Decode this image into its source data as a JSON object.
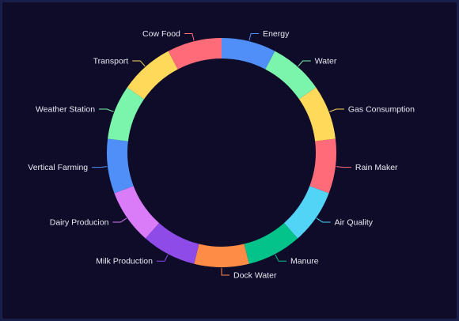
{
  "chart_data": {
    "type": "pie",
    "variant": "donut",
    "title": "",
    "legend": "none",
    "slices": [
      {
        "label": "Energy",
        "value": 1,
        "color": "#4f8ff7"
      },
      {
        "label": "Water",
        "value": 1,
        "color": "#7cf5ac"
      },
      {
        "label": "Gas Consumption",
        "value": 1,
        "color": "#ffd95a"
      },
      {
        "label": "Rain Maker",
        "value": 1,
        "color": "#ff6b78"
      },
      {
        "label": "Air Quality",
        "value": 1,
        "color": "#52d4f7"
      },
      {
        "label": "Manure",
        "value": 1,
        "color": "#03c28a"
      },
      {
        "label": "Dock Water",
        "value": 1,
        "color": "#ff8c46"
      },
      {
        "label": "Milk Production",
        "value": 1,
        "color": "#8e4be8"
      },
      {
        "label": "Dairy Producion",
        "value": 1,
        "color": "#da7cf7"
      },
      {
        "label": "Vertical Farming",
        "value": 1,
        "color": "#4f8ff7"
      },
      {
        "label": "Weather Station",
        "value": 1,
        "color": "#7cf5ac"
      },
      {
        "label": "Transport",
        "value": 1,
        "color": "#ffd95a"
      },
      {
        "label": "Cow Food",
        "value": 1,
        "color": "#ff6b78"
      }
    ]
  }
}
